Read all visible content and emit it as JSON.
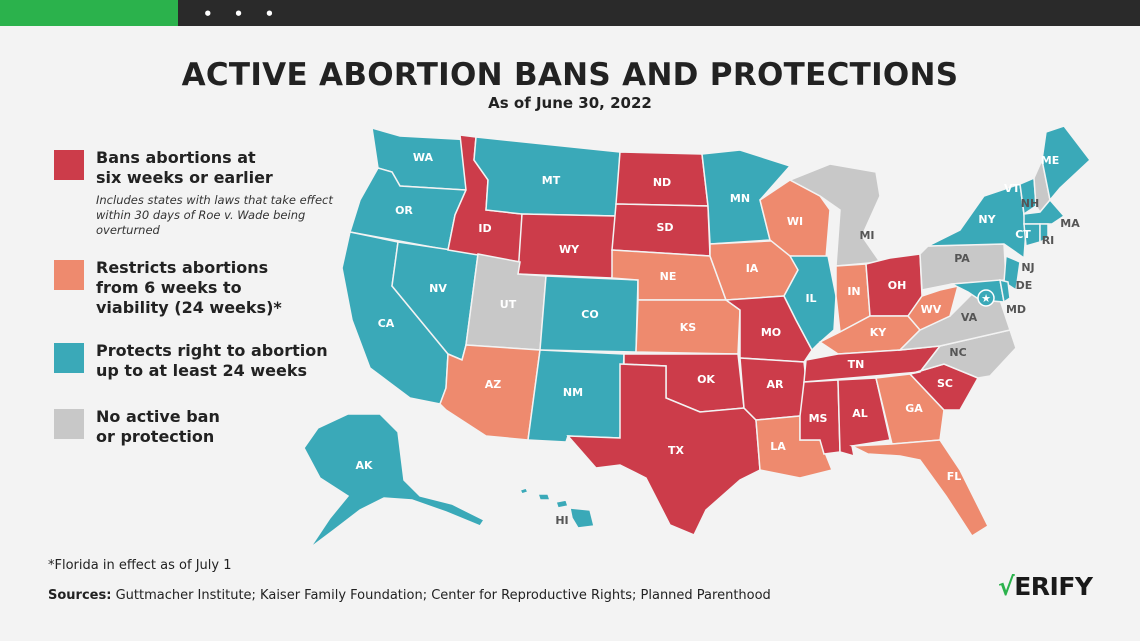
{
  "window": {
    "menu_dots": "• • •"
  },
  "title": "ACTIVE ABORTION BANS AND PROTECTIONS",
  "subtitle": "As of June 30, 2022",
  "colors": {
    "ban": "#cc3c4a",
    "restrict": "#ee8a6e",
    "protect": "#3aa9b8",
    "none": "#c8c8c8",
    "brand_green": "#2bb24c"
  },
  "legend": [
    {
      "label": "Bans abortions at\nsix weeks or earlier",
      "note": "Includes states with laws that take effect within 30 days of Roe v. Wade being overturned",
      "color_key": "ban"
    },
    {
      "label": "Restricts abortions\nfrom 6 weeks to\nviability (24 weeks)*",
      "color_key": "restrict"
    },
    {
      "label": "Protects right to abortion\nup to at least 24 weeks",
      "color_key": "protect"
    },
    {
      "label": "No active ban\nor protection",
      "color_key": "none"
    }
  ],
  "states": {
    "WA": "protect",
    "OR": "protect",
    "CA": "protect",
    "NV": "protect",
    "ID": "ban",
    "MT": "protect",
    "WY": "ban",
    "UT": "none",
    "AZ": "restrict",
    "CO": "protect",
    "NM": "protect",
    "ND": "ban",
    "SD": "ban",
    "NE": "restrict",
    "KS": "restrict",
    "OK": "ban",
    "TX": "ban",
    "MN": "protect",
    "IA": "restrict",
    "MO": "ban",
    "AR": "ban",
    "LA": "restrict",
    "WI": "restrict",
    "IL": "protect",
    "MI": "none",
    "IN": "restrict",
    "OH": "ban",
    "KY": "restrict",
    "TN": "ban",
    "MS": "ban",
    "AL": "ban",
    "GA": "restrict",
    "FL": "restrict",
    "SC": "ban",
    "NC": "none",
    "VA": "none",
    "WV": "restrict",
    "PA": "none",
    "NY": "protect",
    "VT": "protect",
    "NH": "none",
    "ME": "protect",
    "MA": "protect",
    "RI": "protect",
    "CT": "protect",
    "NJ": "protect",
    "DE": "protect",
    "MD": "protect",
    "AK": "protect",
    "HI": "protect",
    "DC": "protect"
  },
  "footnote": "*Florida in effect as of July 1",
  "sources_label": "Sources:",
  "sources_text": "Guttmacher Institute; Kaiser Family Foundation; Center for Reproductive Rights; Planned Parenthood",
  "brand": {
    "check": "√",
    "name": "ERIFY"
  }
}
